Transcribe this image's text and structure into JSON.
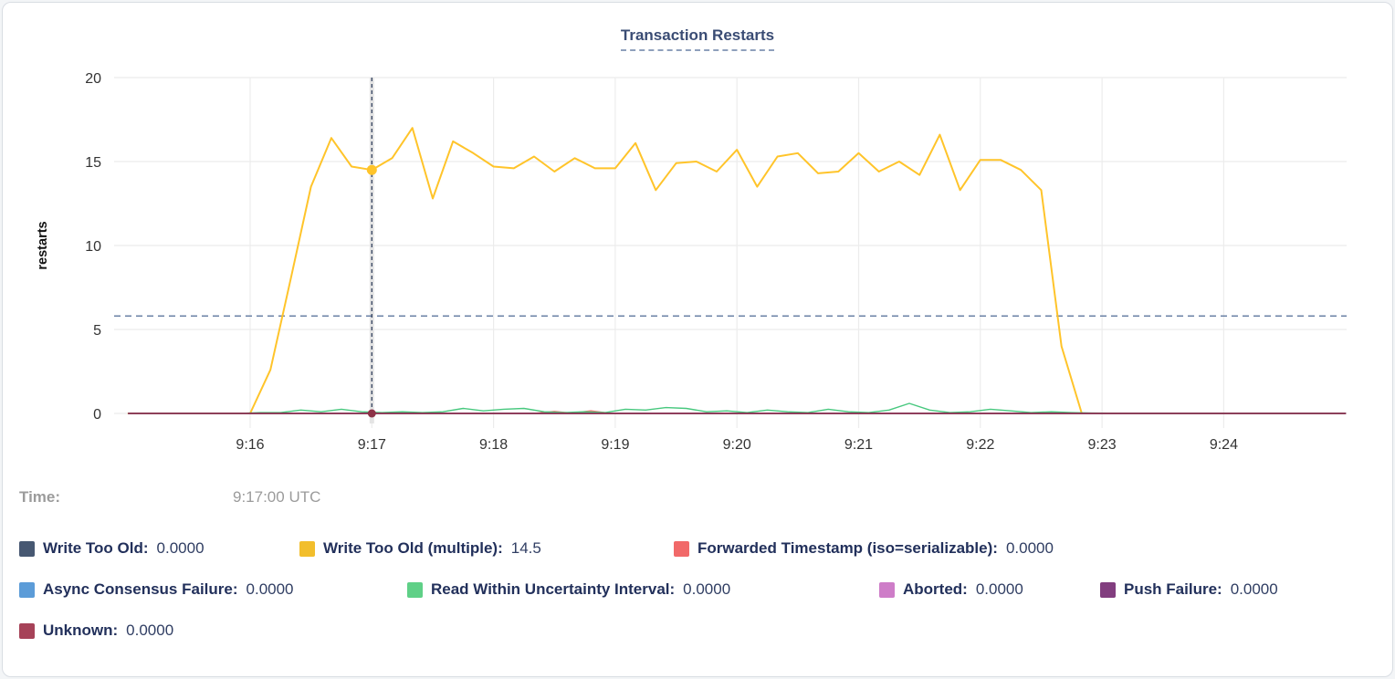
{
  "header": {
    "title": "Transaction Restarts"
  },
  "tooltip_readout": {
    "time_label": "Time:",
    "time_value": "9:17:00 UTC"
  },
  "legend": {
    "rows": [
      [
        0,
        1,
        2
      ],
      [
        3,
        4,
        5,
        6
      ],
      [
        7
      ]
    ]
  },
  "chart_data": {
    "type": "line",
    "title": "Transaction Restarts",
    "xlabel": "",
    "ylabel": "restarts",
    "ylim": [
      0,
      20
    ],
    "yticks": [
      0,
      5,
      10,
      15,
      20
    ],
    "xtick_labels": [
      "9:16",
      "9:17",
      "9:18",
      "9:19",
      "9:20",
      "9:21",
      "9:22",
      "9:23",
      "9:24"
    ],
    "x_range": [
      "9:15:00",
      "9:25:00"
    ],
    "grid": true,
    "legend_position": "bottom",
    "average_rule_value": 5.8,
    "colors": {
      "grid": "#ececec",
      "threshold_rule": "#6b82a6",
      "crosshair": "#32415e",
      "crosshair_band": "#e4e4e4",
      "tick_text": "#333333",
      "axis_label_text": "#111111"
    },
    "crosshair": {
      "time": "9:17:00",
      "points": [
        {
          "series": "Write Too Old (multiple)",
          "value": 14.5,
          "r": 5.5,
          "color": "#ffc42a"
        },
        {
          "series": "Unknown",
          "value": 0,
          "r": 4.5,
          "color": "#8c3246"
        }
      ]
    },
    "series": [
      {
        "slug": "write-too-old",
        "name": "Write Too Old",
        "legend_label": "Write Too Old:",
        "value_label": "0.0000",
        "color": "#475872",
        "line_width": 1.4,
        "points": [
          [
            "9:15:00",
            0
          ],
          [
            "9:25:00",
            0
          ]
        ]
      },
      {
        "slug": "write-too-old-multiple",
        "name": "Write Too Old (multiple)",
        "legend_label": "Write Too Old (multiple):",
        "value_label": "14.5",
        "color": "#f2be2c",
        "line_color": "#ffc42a",
        "line_width": 2,
        "points": [
          [
            "9:15:00",
            0
          ],
          [
            "9:15:30",
            0
          ],
          [
            "9:15:50",
            0
          ],
          [
            "9:16:00",
            0
          ],
          [
            "9:16:10",
            2.6
          ],
          [
            "9:16:20",
            8.0
          ],
          [
            "9:16:30",
            13.5
          ],
          [
            "9:16:40",
            16.4
          ],
          [
            "9:16:50",
            14.7
          ],
          [
            "9:17:00",
            14.5
          ],
          [
            "9:17:10",
            15.2
          ],
          [
            "9:17:20",
            17.0
          ],
          [
            "9:17:30",
            12.8
          ],
          [
            "9:17:40",
            16.2
          ],
          [
            "9:17:50",
            15.5
          ],
          [
            "9:18:00",
            14.7
          ],
          [
            "9:18:10",
            14.6
          ],
          [
            "9:18:20",
            15.3
          ],
          [
            "9:18:30",
            14.4
          ],
          [
            "9:18:40",
            15.2
          ],
          [
            "9:18:50",
            14.6
          ],
          [
            "9:19:00",
            14.6
          ],
          [
            "9:19:10",
            16.1
          ],
          [
            "9:19:20",
            13.3
          ],
          [
            "9:19:30",
            14.9
          ],
          [
            "9:19:40",
            15.0
          ],
          [
            "9:19:50",
            14.4
          ],
          [
            "9:20:00",
            15.7
          ],
          [
            "9:20:10",
            13.5
          ],
          [
            "9:20:20",
            15.3
          ],
          [
            "9:20:30",
            15.5
          ],
          [
            "9:20:40",
            14.3
          ],
          [
            "9:20:50",
            14.4
          ],
          [
            "9:21:00",
            15.5
          ],
          [
            "9:21:10",
            14.4
          ],
          [
            "9:21:20",
            15.0
          ],
          [
            "9:21:30",
            14.2
          ],
          [
            "9:21:40",
            16.6
          ],
          [
            "9:21:50",
            13.3
          ],
          [
            "9:22:00",
            15.1
          ],
          [
            "9:22:10",
            15.1
          ],
          [
            "9:22:20",
            14.5
          ],
          [
            "9:22:30",
            13.3
          ],
          [
            "9:22:40",
            4.0
          ],
          [
            "9:22:50",
            0.0
          ]
        ]
      },
      {
        "slug": "forwarded-timestamp",
        "name": "Forwarded Timestamp (iso=serializable)",
        "legend_label": "Forwarded Timestamp (iso=serializable):",
        "value_label": "0.0000",
        "color": "#f16969",
        "line_width": 1.4,
        "points": [
          [
            "9:15:00",
            0
          ],
          [
            "9:18:20",
            0
          ],
          [
            "9:18:30",
            0.12
          ],
          [
            "9:18:38",
            0.02
          ],
          [
            "9:18:48",
            0.15
          ],
          [
            "9:18:58",
            0
          ],
          [
            "9:25:00",
            0
          ]
        ]
      },
      {
        "slug": "async-consensus-failure",
        "name": "Async Consensus Failure",
        "legend_label": "Async Consensus Failure:",
        "value_label": "0.0000",
        "color": "#5c9cd8",
        "line_width": 1.4,
        "points": [
          [
            "9:15:00",
            0
          ],
          [
            "9:25:00",
            0
          ]
        ]
      },
      {
        "slug": "read-within-uncertainty-interval",
        "name": "Read Within Uncertainty Interval",
        "legend_label": "Read Within Uncertainty Interval:",
        "value_label": "0.0000",
        "color": "#5fd087",
        "line_color": "#47c87e",
        "line_width": 1.4,
        "points": [
          [
            "9:15:00",
            0
          ],
          [
            "9:15:55",
            0
          ],
          [
            "9:16:05",
            0.05
          ],
          [
            "9:16:15",
            0.05
          ],
          [
            "9:16:25",
            0.2
          ],
          [
            "9:16:35",
            0.1
          ],
          [
            "9:16:45",
            0.25
          ],
          [
            "9:16:55",
            0.1
          ],
          [
            "9:17:05",
            0.05
          ],
          [
            "9:17:15",
            0.1
          ],
          [
            "9:17:25",
            0.05
          ],
          [
            "9:17:35",
            0.1
          ],
          [
            "9:17:45",
            0.3
          ],
          [
            "9:17:55",
            0.15
          ],
          [
            "9:18:05",
            0.25
          ],
          [
            "9:18:15",
            0.3
          ],
          [
            "9:18:25",
            0.1
          ],
          [
            "9:18:35",
            0.05
          ],
          [
            "9:18:45",
            0.1
          ],
          [
            "9:18:55",
            0.05
          ],
          [
            "9:19:05",
            0.25
          ],
          [
            "9:19:15",
            0.2
          ],
          [
            "9:19:25",
            0.35
          ],
          [
            "9:19:35",
            0.3
          ],
          [
            "9:19:45",
            0.1
          ],
          [
            "9:19:55",
            0.15
          ],
          [
            "9:20:05",
            0.05
          ],
          [
            "9:20:15",
            0.2
          ],
          [
            "9:20:25",
            0.1
          ],
          [
            "9:20:35",
            0.05
          ],
          [
            "9:20:45",
            0.25
          ],
          [
            "9:20:55",
            0.1
          ],
          [
            "9:21:05",
            0.05
          ],
          [
            "9:21:15",
            0.2
          ],
          [
            "9:21:25",
            0.6
          ],
          [
            "9:21:35",
            0.2
          ],
          [
            "9:21:45",
            0.05
          ],
          [
            "9:21:55",
            0.1
          ],
          [
            "9:22:05",
            0.25
          ],
          [
            "9:22:15",
            0.15
          ],
          [
            "9:22:25",
            0.05
          ],
          [
            "9:22:35",
            0.1
          ],
          [
            "9:22:45",
            0.05
          ],
          [
            "9:22:55",
            0.02
          ],
          [
            "9:23:20",
            0
          ],
          [
            "9:24:10",
            0
          ],
          [
            "9:25:00",
            0
          ]
        ]
      },
      {
        "slug": "aborted",
        "name": "Aborted",
        "legend_label": "Aborted:",
        "value_label": "0.0000",
        "color": "#ce7dc8",
        "line_width": 1.4,
        "points": [
          [
            "9:15:00",
            0
          ],
          [
            "9:25:00",
            0
          ]
        ]
      },
      {
        "slug": "push-failure",
        "name": "Push Failure",
        "legend_label": "Push Failure:",
        "value_label": "0.0000",
        "color": "#823e7f",
        "line_width": 1.4,
        "points": [
          [
            "9:15:00",
            0
          ],
          [
            "9:25:00",
            0
          ]
        ]
      },
      {
        "slug": "unknown",
        "name": "Unknown",
        "legend_label": "Unknown:",
        "value_label": "0.0000",
        "color": "#a64258",
        "line_color": "#8c3246",
        "line_width": 1.6,
        "points": [
          [
            "9:15:00",
            0
          ],
          [
            "9:25:00",
            0
          ]
        ]
      }
    ]
  }
}
